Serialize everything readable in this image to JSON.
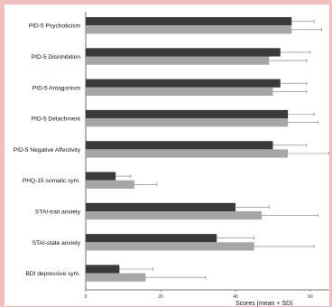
{
  "chart_data": {
    "type": "bar",
    "orientation": "horizontal",
    "categories": [
      "PID-5 Psychoticism",
      "PID-5 Disinhibition",
      "PID-5 Antagonism",
      "PID-5 Detachment",
      "PID-5 Negative Affectivity",
      "PHQ-15 somatic sym.",
      "STAI-trait anxiety",
      "STAI-state anxiety",
      "BDI depressive sym."
    ],
    "series": [
      {
        "color": "#3a3a3a",
        "values": [
          55,
          52,
          52,
          54,
          50,
          8,
          40,
          35,
          9
        ],
        "sd": [
          6,
          8,
          7,
          7,
          9,
          4,
          9,
          10,
          9
        ]
      },
      {
        "color": "#a6a6a6",
        "values": [
          55,
          49,
          50,
          54,
          54,
          13,
          47,
          45,
          16
        ],
        "sd": [
          8,
          10,
          9,
          8,
          11,
          6,
          15,
          16,
          16
        ]
      }
    ],
    "xlim": [
      0,
      65
    ],
    "xticks": [
      0,
      20,
      40,
      60
    ],
    "xlabel": "Scores (mean + SD)",
    "grid": false,
    "error_bars": "SD (positive)"
  }
}
